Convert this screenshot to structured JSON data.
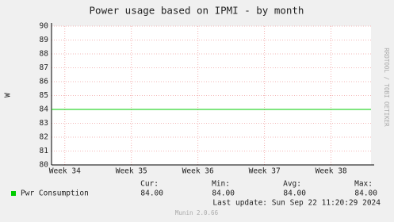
{
  "chart_data": {
    "type": "line",
    "title": "Power usage based on IPMI - by month",
    "ylabel": "W",
    "side_text": "RRDTOOL / TOBI OETIKER",
    "xlim": [
      33.8,
      38.6
    ],
    "xticks": [
      {
        "value": 34,
        "label": "Week 34"
      },
      {
        "value": 35,
        "label": "Week 35"
      },
      {
        "value": 36,
        "label": "Week 36"
      },
      {
        "value": 37,
        "label": "Week 37"
      },
      {
        "value": 38,
        "label": "Week 38"
      }
    ],
    "ylim": [
      80,
      90
    ],
    "yticks": [
      80,
      81,
      82,
      83,
      84,
      85,
      86,
      87,
      88,
      89,
      90
    ],
    "grid": true,
    "series": [
      {
        "name": "Pwr Consumption",
        "color": "#00cc00",
        "x": [
          33.8,
          38.6
        ],
        "values": [
          84,
          84
        ]
      }
    ],
    "legend_stats": {
      "headers": [
        "Cur:",
        "Min:",
        "Avg:",
        "Max:"
      ],
      "values": [
        84,
        84,
        84,
        84
      ],
      "value_labels": [
        "84.00",
        "84.00",
        "84.00",
        "84.00"
      ]
    },
    "last_update": "Last update: Sun Sep 22 11:20:29 2024",
    "footer": "Munin 2.0.66"
  }
}
